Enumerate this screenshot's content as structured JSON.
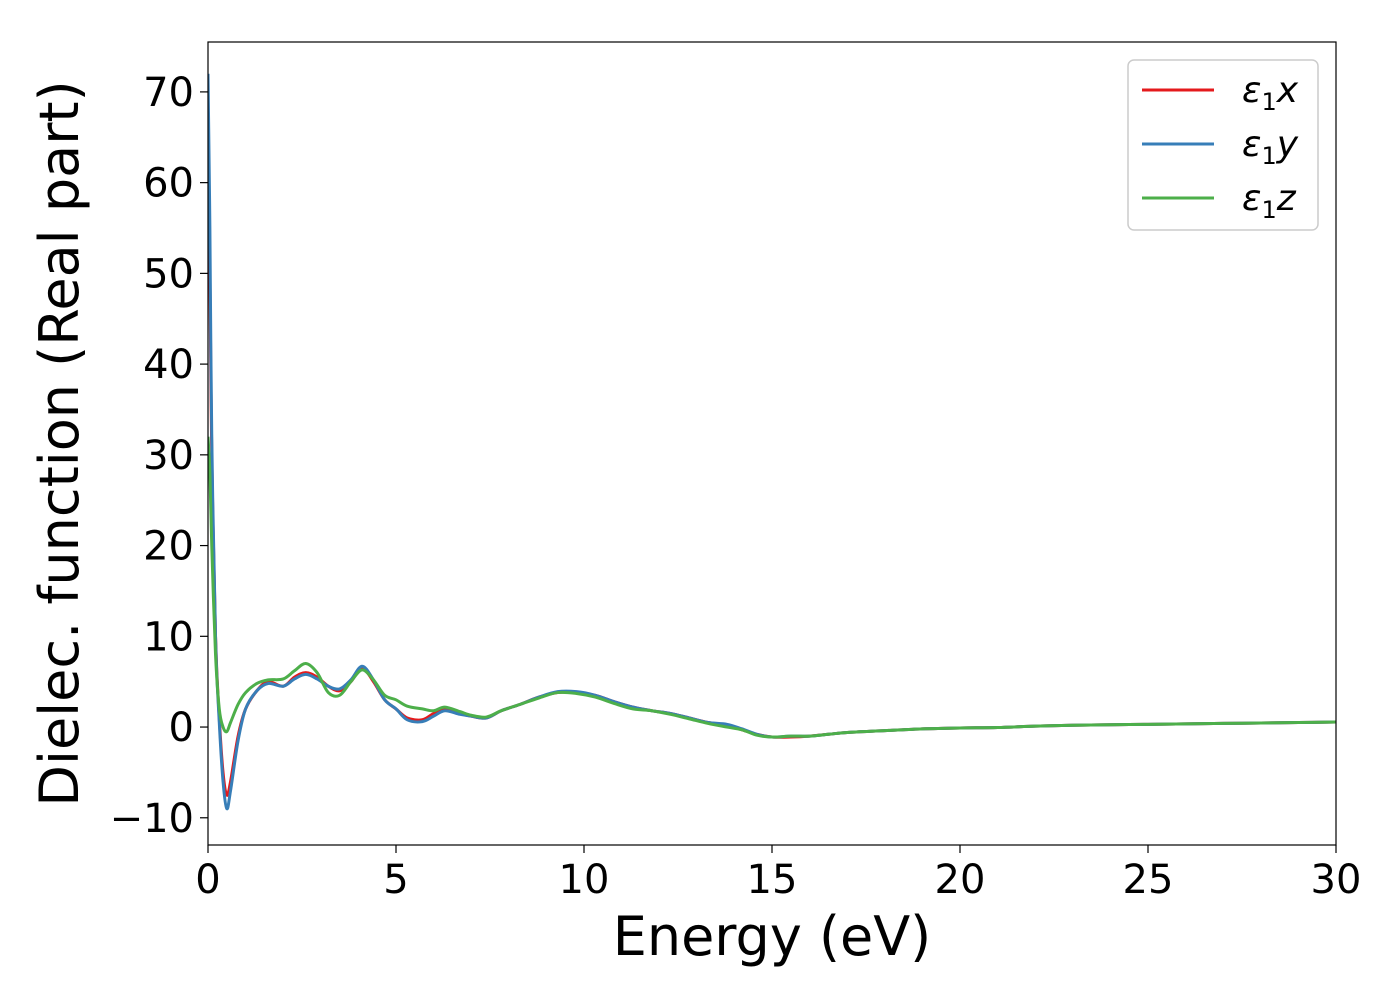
{
  "chart_data": {
    "type": "line",
    "xlabel": "Energy (eV)",
    "ylabel": "Dielec. function (Real part)",
    "xlim": [
      0,
      30
    ],
    "ylim": [
      -13,
      75.5
    ],
    "xticks": [
      0,
      5,
      10,
      15,
      20,
      25,
      30
    ],
    "xtick_labels": [
      "0",
      "5",
      "10",
      "15",
      "20",
      "25",
      "30"
    ],
    "yticks": [
      -10,
      0,
      10,
      20,
      30,
      40,
      50,
      60,
      70
    ],
    "ytick_labels": [
      "−10",
      "0",
      "10",
      "20",
      "30",
      "40",
      "50",
      "60",
      "70"
    ],
    "grid": false,
    "legend_position": "top-right",
    "series": [
      {
        "name": "ε₁x",
        "legend_main": "ε",
        "legend_sub": "1",
        "legend_tail": "x",
        "color": "#e41a1c",
        "x": [
          0.0,
          0.05,
          0.1,
          0.2,
          0.3,
          0.4,
          0.5,
          0.6,
          0.8,
          1.0,
          1.3,
          1.6,
          2.0,
          2.3,
          2.6,
          2.9,
          3.2,
          3.5,
          3.8,
          4.1,
          4.4,
          4.7,
          5.0,
          5.3,
          5.7,
          6.0,
          6.3,
          6.7,
          7.0,
          7.4,
          7.8,
          8.3,
          8.8,
          9.3,
          9.8,
          10.3,
          10.8,
          11.3,
          11.8,
          12.3,
          12.8,
          13.3,
          13.8,
          14.2,
          14.6,
          15.0,
          15.5,
          16.0,
          16.5,
          17.0,
          18.0,
          19.0,
          20.0,
          21.0,
          22.0,
          23.0,
          24.0,
          25.0,
          26.0,
          27.0,
          28.0,
          29.0,
          30.0
        ],
        "y": [
          60,
          50,
          30,
          10,
          1,
          -5,
          -7.5,
          -6,
          -1,
          2,
          4,
          5,
          4.5,
          5.5,
          6,
          5.5,
          4.5,
          4,
          5,
          6.5,
          5,
          3,
          2,
          1,
          0.8,
          1.5,
          2,
          1.5,
          1.2,
          1,
          1.8,
          2.5,
          3.3,
          3.8,
          3.8,
          3.5,
          2.8,
          2.2,
          1.8,
          1.5,
          1,
          0.5,
          0.2,
          -0.3,
          -0.8,
          -1.1,
          -1.1,
          -1.0,
          -0.8,
          -0.6,
          -0.4,
          -0.2,
          -0.1,
          -0.05,
          0.1,
          0.2,
          0.25,
          0.3,
          0.35,
          0.4,
          0.45,
          0.5,
          0.55
        ]
      },
      {
        "name": "ε₁y",
        "legend_main": "ε",
        "legend_sub": "1",
        "legend_tail": "y",
        "color": "#377eb8",
        "x": [
          0.0,
          0.05,
          0.1,
          0.2,
          0.3,
          0.4,
          0.5,
          0.6,
          0.8,
          1.0,
          1.3,
          1.6,
          2.0,
          2.3,
          2.6,
          2.9,
          3.2,
          3.5,
          3.8,
          4.1,
          4.4,
          4.7,
          5.0,
          5.3,
          5.7,
          6.0,
          6.3,
          6.7,
          7.0,
          7.4,
          7.8,
          8.3,
          8.8,
          9.3,
          9.8,
          10.3,
          10.8,
          11.3,
          11.8,
          12.3,
          12.8,
          13.3,
          13.8,
          14.2,
          14.6,
          15.0,
          15.5,
          16.0,
          16.5,
          17.0,
          18.0,
          19.0,
          20.0,
          21.0,
          22.0,
          23.0,
          24.0,
          25.0,
          26.0,
          27.0,
          28.0,
          29.0,
          30.0
        ],
        "y": [
          72,
          55,
          32,
          10,
          0.5,
          -6,
          -9,
          -7,
          -1.5,
          2,
          4,
          4.8,
          4.5,
          5.3,
          5.8,
          5.3,
          4.5,
          4.2,
          5.2,
          6.7,
          5.2,
          3,
          2,
          0.8,
          0.6,
          1.2,
          1.8,
          1.4,
          1.2,
          1,
          1.8,
          2.5,
          3.3,
          3.9,
          3.9,
          3.5,
          2.8,
          2.2,
          1.8,
          1.5,
          1,
          0.5,
          0.3,
          -0.2,
          -0.8,
          -1.1,
          -1.0,
          -1.0,
          -0.8,
          -0.6,
          -0.4,
          -0.2,
          -0.1,
          -0.05,
          0.1,
          0.2,
          0.25,
          0.3,
          0.35,
          0.4,
          0.45,
          0.5,
          0.55
        ]
      },
      {
        "name": "ε₁z",
        "legend_main": "ε",
        "legend_sub": "1",
        "legend_tail": "z",
        "color": "#4daf4a",
        "x": [
          0.0,
          0.05,
          0.1,
          0.2,
          0.3,
          0.4,
          0.5,
          0.6,
          0.8,
          1.0,
          1.3,
          1.6,
          2.0,
          2.3,
          2.6,
          2.9,
          3.2,
          3.5,
          3.8,
          4.1,
          4.4,
          4.7,
          5.0,
          5.3,
          5.7,
          6.0,
          6.3,
          6.7,
          7.0,
          7.4,
          7.8,
          8.3,
          8.8,
          9.3,
          9.8,
          10.3,
          10.8,
          11.3,
          11.8,
          12.3,
          12.8,
          13.3,
          13.8,
          14.2,
          14.6,
          15.0,
          15.5,
          16.0,
          16.5,
          17.0,
          18.0,
          19.0,
          20.0,
          21.0,
          22.0,
          23.0,
          24.0,
          25.0,
          26.0,
          27.0,
          28.0,
          29.0,
          30.0
        ],
        "y": [
          32,
          28,
          20,
          8,
          2,
          0,
          -0.5,
          0.5,
          2.5,
          3.8,
          4.8,
          5.2,
          5.3,
          6.2,
          7,
          6,
          3.8,
          3.5,
          5,
          6.3,
          5.2,
          3.5,
          3,
          2.3,
          2,
          1.8,
          2.2,
          1.7,
          1.3,
          1.1,
          1.8,
          2.5,
          3.2,
          3.8,
          3.7,
          3.3,
          2.6,
          2,
          1.8,
          1.4,
          0.9,
          0.4,
          0,
          -0.3,
          -0.9,
          -1.1,
          -1.0,
          -1.0,
          -0.8,
          -0.6,
          -0.4,
          -0.2,
          -0.1,
          -0.05,
          0.1,
          0.2,
          0.25,
          0.3,
          0.35,
          0.4,
          0.45,
          0.5,
          0.55
        ]
      }
    ]
  }
}
